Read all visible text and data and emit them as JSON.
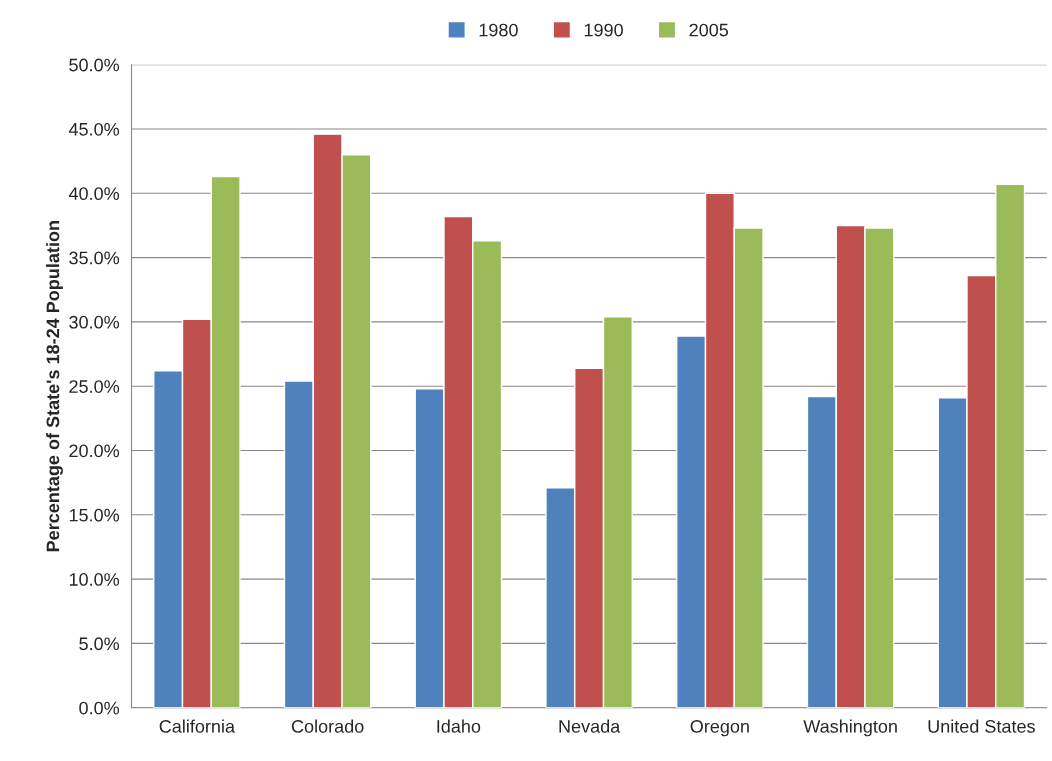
{
  "chart_data": {
    "type": "bar",
    "ylabel": "Percentage of State's 18-24 Population",
    "categories": [
      "California",
      "Colorado",
      "Idaho",
      "Nevada",
      "Oregon",
      "Washington",
      "United States"
    ],
    "series": [
      {
        "name": "1980",
        "color": "#4f81bd",
        "values": [
          26.2,
          25.4,
          24.8,
          17.1,
          28.9,
          24.2,
          24.1
        ]
      },
      {
        "name": "1990",
        "color": "#c0504d",
        "values": [
          30.2,
          44.6,
          38.2,
          26.4,
          40.0,
          37.5,
          33.6
        ]
      },
      {
        "name": "2005",
        "color": "#9bbb59",
        "values": [
          41.3,
          43.0,
          36.3,
          30.4,
          37.3,
          37.3,
          40.7
        ]
      }
    ],
    "ylim": [
      0,
      50
    ],
    "yticks": [
      {
        "value": 0,
        "label": "0.0%"
      },
      {
        "value": 5,
        "label": "5.0%"
      },
      {
        "value": 10,
        "label": "10.0%"
      },
      {
        "value": 15,
        "label": "15.0%"
      },
      {
        "value": 20,
        "label": "20.0%"
      },
      {
        "value": 25,
        "label": "25.0%"
      },
      {
        "value": 30,
        "label": "30.0%"
      },
      {
        "value": 35,
        "label": "35.0%"
      },
      {
        "value": 40,
        "label": "40.0%"
      },
      {
        "value": 45,
        "label": "45.0%"
      },
      {
        "value": 50,
        "label": "50.0%"
      }
    ],
    "grid": "y",
    "legend": "top"
  }
}
